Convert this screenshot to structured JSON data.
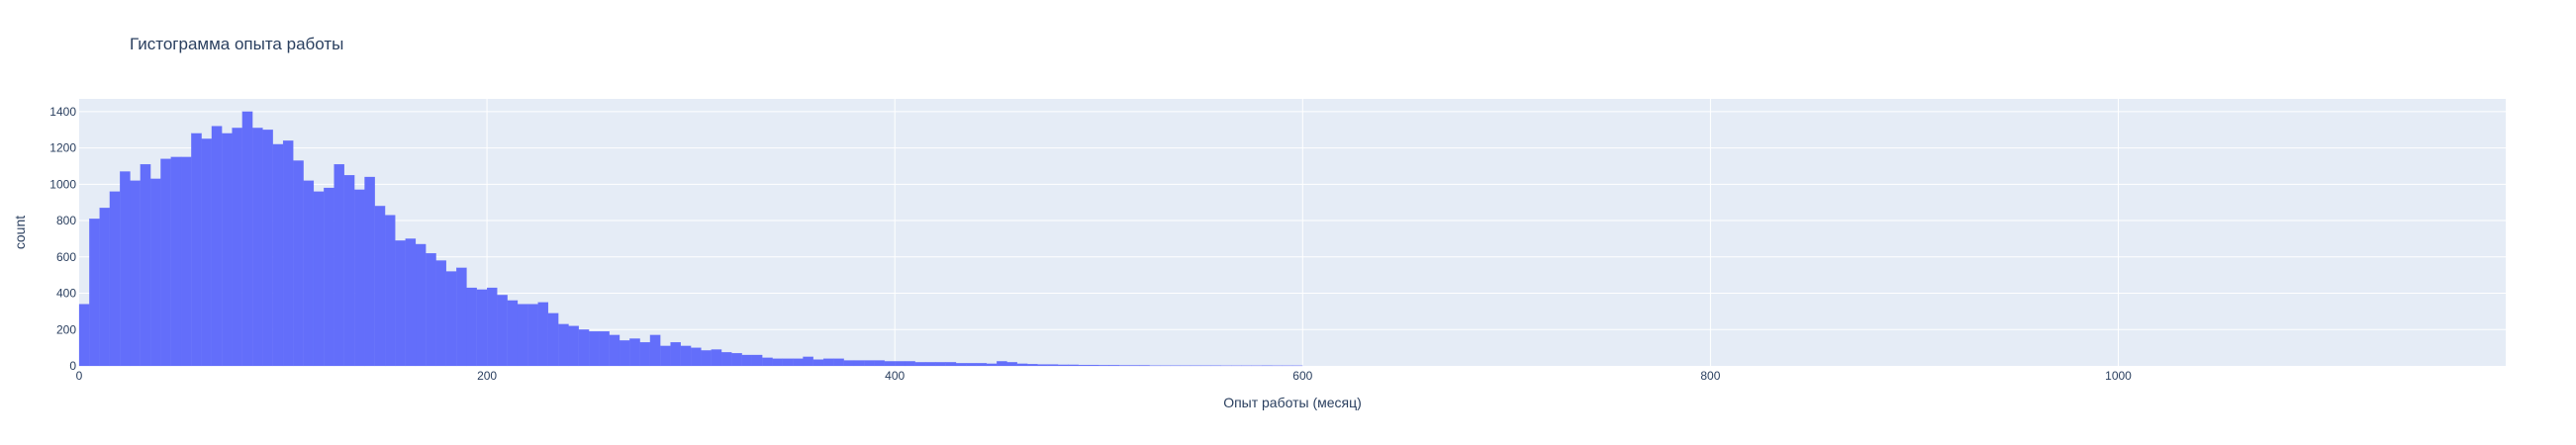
{
  "chart_data": {
    "type": "bar",
    "title": "Гистограмма опыта работы",
    "xlabel": "Опыт работы (месяц)",
    "ylabel": "count",
    "xlim": [
      0,
      1190
    ],
    "ylim": [
      0,
      1470
    ],
    "x_ticks": [
      0,
      200,
      400,
      600,
      800,
      1000
    ],
    "y_ticks": [
      0,
      200,
      400,
      600,
      800,
      1000,
      1200,
      1400
    ],
    "bin_width": 5,
    "bin_start": 0,
    "values": [
      340,
      810,
      870,
      960,
      1070,
      1020,
      1110,
      1030,
      1140,
      1150,
      1150,
      1280,
      1250,
      1320,
      1280,
      1310,
      1400,
      1310,
      1300,
      1220,
      1240,
      1130,
      1020,
      960,
      980,
      1110,
      1050,
      970,
      1040,
      880,
      830,
      690,
      700,
      670,
      620,
      580,
      520,
      540,
      430,
      420,
      430,
      390,
      360,
      340,
      340,
      350,
      290,
      230,
      220,
      200,
      190,
      190,
      170,
      140,
      150,
      130,
      170,
      110,
      130,
      110,
      100,
      85,
      90,
      75,
      70,
      60,
      60,
      45,
      40,
      40,
      40,
      50,
      35,
      40,
      40,
      30,
      30,
      30,
      30,
      25,
      25,
      25,
      20,
      20,
      20,
      20,
      15,
      15,
      15,
      12,
      25,
      20,
      12,
      10,
      8,
      8,
      6,
      6,
      5,
      5,
      4,
      4,
      3,
      3,
      3,
      2,
      2,
      2,
      2,
      2,
      2,
      2,
      1,
      1,
      1,
      1,
      2,
      1,
      1,
      1
    ],
    "grid": true,
    "legend": "none",
    "colors": {
      "bar": "#636efa",
      "plot_bg": "#e5ecf6",
      "grid": "#ffffff",
      "text": "#2a3f5f"
    }
  }
}
